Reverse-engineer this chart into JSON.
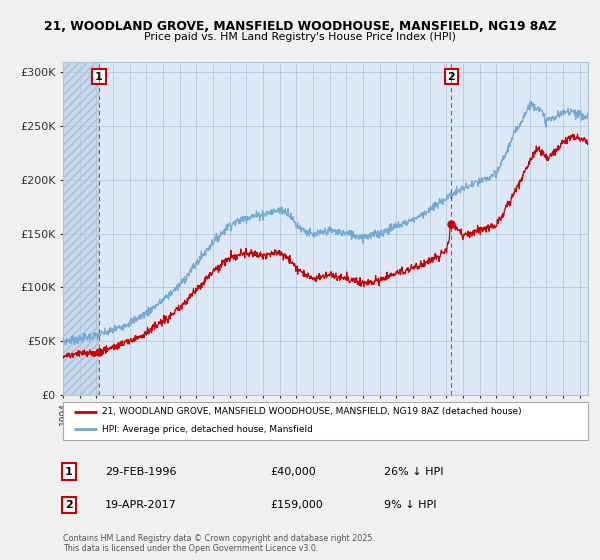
{
  "title_line1": "21, WOODLAND GROVE, MANSFIELD WOODHOUSE, MANSFIELD, NG19 8AZ",
  "title_line2": "Price paid vs. HM Land Registry's House Price Index (HPI)",
  "bg_color": "#f0f0f0",
  "plot_bg_color": "#dce8f5",
  "hatch_color": "#c5d8ee",
  "legend_line1": "21, WOODLAND GROVE, MANSFIELD WOODHOUSE, MANSFIELD, NG19 8AZ (detached house)",
  "legend_line2": "HPI: Average price, detached house, Mansfield",
  "sale1_label": "1",
  "sale1_date": "29-FEB-1996",
  "sale1_price": "£40,000",
  "sale1_hpi": "26% ↓ HPI",
  "sale2_label": "2",
  "sale2_date": "19-APR-2017",
  "sale2_price": "£159,000",
  "sale2_hpi": "9% ↓ HPI",
  "footer": "Contains HM Land Registry data © Crown copyright and database right 2025.\nThis data is licensed under the Open Government Licence v3.0.",
  "red_color": "#cc0000",
  "blue_color": "#6fa8d4",
  "sale1_x": 1996.16,
  "sale1_y": 40000,
  "sale2_x": 2017.3,
  "sale2_y": 159000,
  "xmin": 1994.0,
  "xmax": 2025.5,
  "ymin": 0,
  "ymax": 310000,
  "yticks": [
    0,
    50000,
    100000,
    150000,
    200000,
    250000,
    300000
  ],
  "ytick_labels": [
    "£0",
    "£50K",
    "£100K",
    "£150K",
    "£200K",
    "£250K",
    "£300K"
  ]
}
